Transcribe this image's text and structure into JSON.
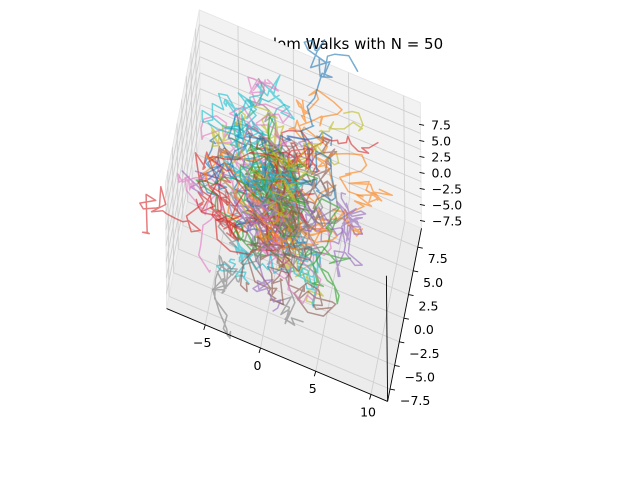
{
  "chart_data": {
    "type": "line",
    "projection": "3d",
    "title": "3D Random Walks with N = 50",
    "xlabel": "",
    "ylabel": "",
    "zlabel": "",
    "grid": true,
    "legend": false,
    "xlim": [
      -8.5,
      11.5
    ],
    "ylim": [
      -8.8,
      9.5
    ],
    "zlim": [
      -9.8,
      9.8
    ],
    "x_ticks": [
      -5,
      0,
      5,
      10
    ],
    "x_tick_labels": [
      "−5",
      "0",
      "5",
      "10"
    ],
    "y_ticks": [
      -7.5,
      -5.0,
      -2.5,
      0.0,
      2.5,
      5.0,
      7.5
    ],
    "y_tick_labels": [
      "−7.5",
      "−5.0",
      "−2.5",
      "0.0",
      "2.5",
      "5.0",
      "7.5"
    ],
    "z_ticks": [
      -7.5,
      -5.0,
      -2.5,
      0.0,
      2.5,
      5.0,
      7.5
    ],
    "z_tick_labels": [
      "−7.5",
      "−5.0",
      "−2.5",
      "0.0",
      "2.5",
      "5.0",
      "7.5"
    ],
    "walks": {
      "count": 50,
      "steps_per_walk": 50,
      "start": [
        0,
        0,
        0
      ],
      "line_alpha": 0.6,
      "colors": [
        "#1f77b4",
        "#ff7f0e",
        "#2ca02c",
        "#d62728",
        "#9467bd",
        "#8c564b",
        "#e377c2",
        "#7f7f7f",
        "#bcbd22",
        "#17becf"
      ]
    }
  }
}
